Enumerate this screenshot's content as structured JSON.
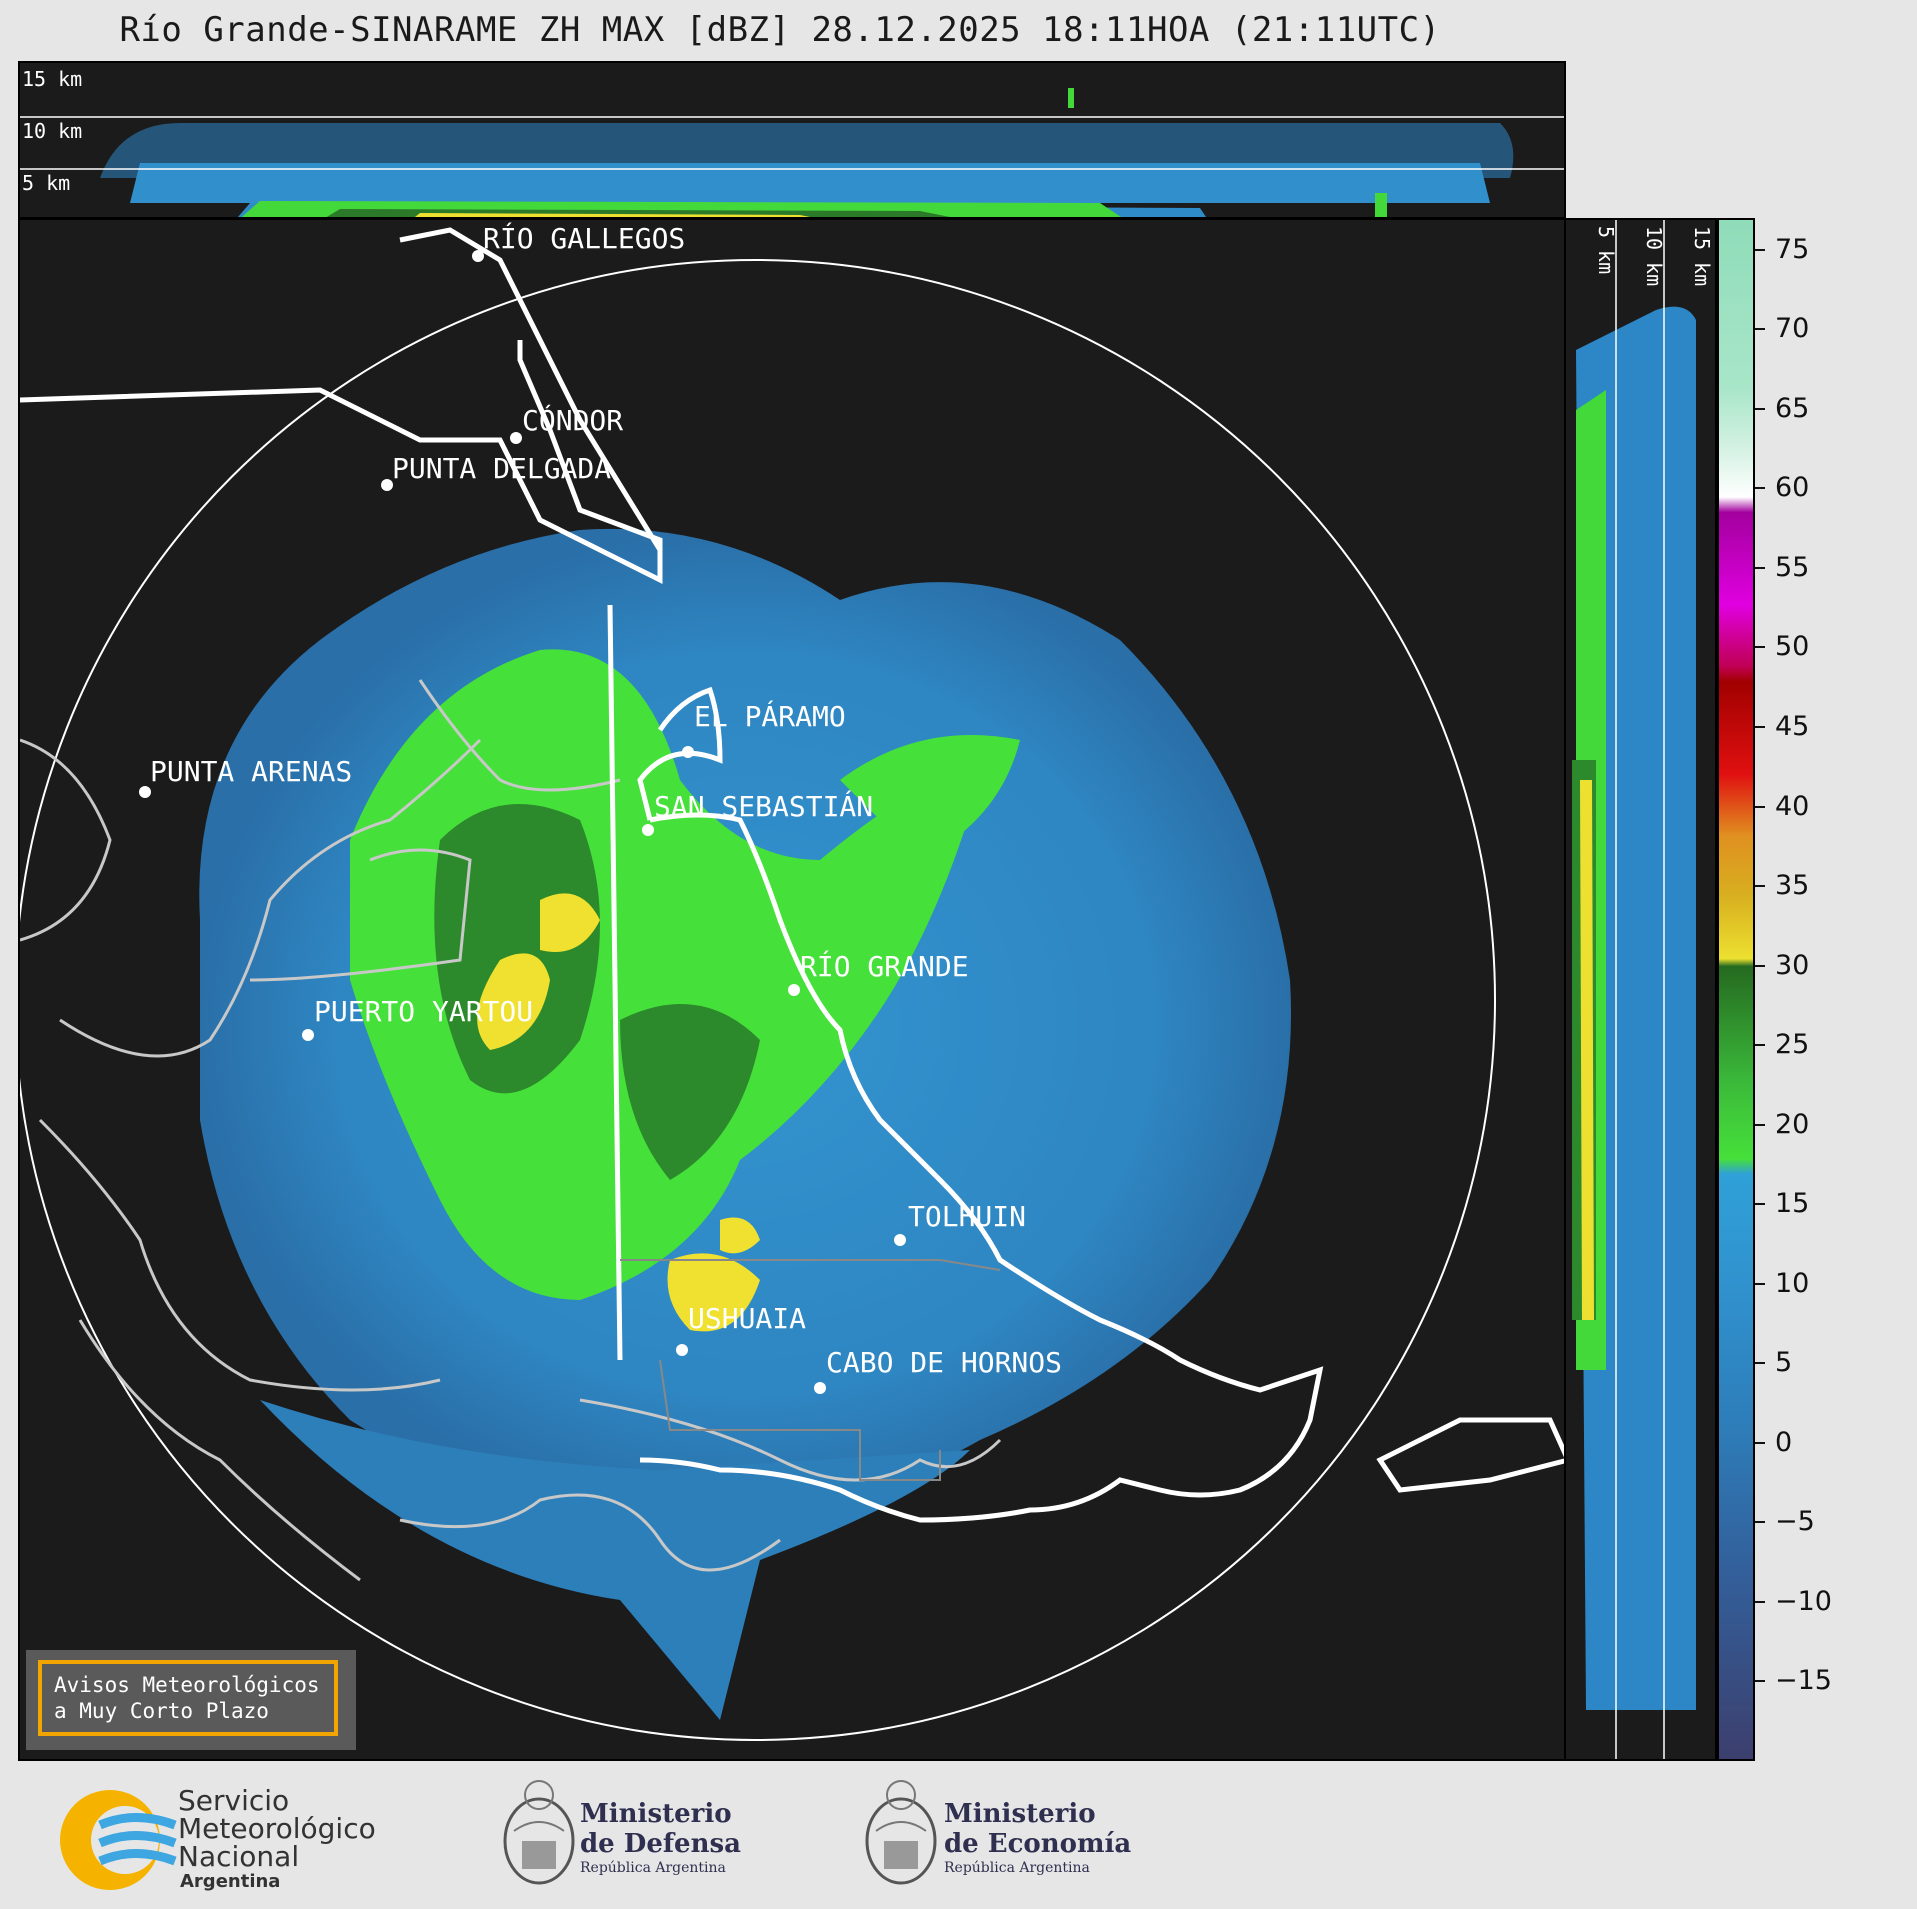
{
  "title": "Río Grande-SINARAME ZH MAX [dBZ] 28.12.2025 18:11HOA (21:11UTC)",
  "top_panel": {
    "altitude_labels": [
      "15 km",
      "10 km",
      "5 km"
    ]
  },
  "side_panel": {
    "altitude_labels": [
      "5 km",
      "10 km",
      "15 km"
    ]
  },
  "map": {
    "locations": [
      {
        "name": "RÍO GALLEGOS"
      },
      {
        "name": "CÓNDOR"
      },
      {
        "name": "PUNTA DELGADA"
      },
      {
        "name": "PUNTA ARENAS"
      },
      {
        "name": "EL PÁRAMO"
      },
      {
        "name": "SAN SEBASTIÁN"
      },
      {
        "name": "RÍO GRANDE"
      },
      {
        "name": "PUERTO YARTOU"
      },
      {
        "name": "TOLHUIN"
      },
      {
        "name": "USHUAIA"
      },
      {
        "name": "CABO DE HORNOS"
      }
    ],
    "colors": {
      "background": "#1b1b1b",
      "weak_echo": "#3a8fc6",
      "moderate_echo": "#46e03a",
      "strong_echo": "#f0e030",
      "borders": "#ffffff",
      "coast": "#c8c8c8"
    }
  },
  "colorbar": {
    "unit": "dBZ",
    "ticks": [
      "75",
      "70",
      "65",
      "60",
      "55",
      "50",
      "45",
      "40",
      "35",
      "30",
      "25",
      "20",
      "15",
      "10",
      "5",
      "0",
      "−5",
      "−10",
      "−15"
    ],
    "range": [
      -20,
      77
    ]
  },
  "warning_box": {
    "line1": "Avisos Meteorológicos",
    "line2": "a Muy Corto Plazo"
  },
  "footer": {
    "smn": {
      "line1": "Servicio",
      "line2": "Meteorológico",
      "line3": "Nacional",
      "line4": "Argentina"
    },
    "defensa": {
      "line1": "Ministerio",
      "line2": "de Defensa",
      "line3": "República Argentina"
    },
    "economia": {
      "line1": "Ministerio",
      "line2": "de Economía",
      "line3": "República Argentina"
    }
  }
}
